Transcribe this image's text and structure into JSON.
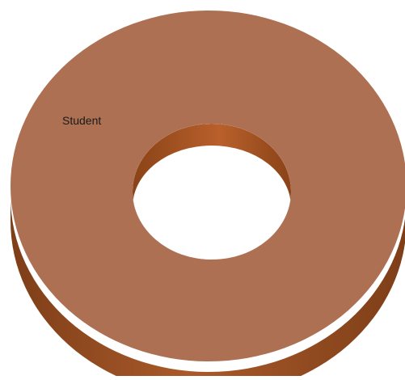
{
  "chart_data": {
    "type": "pie",
    "style": "3d-doughnut",
    "title": "",
    "categories": [
      "Student"
    ],
    "values": [
      100
    ],
    "labels": [
      "Student"
    ],
    "colors": {
      "top": "#ad7052",
      "side": "#a95a2a",
      "side_dark": "#7e3e18",
      "inner_wall": "#b9602c",
      "inner_wall_dark": "#8a4317",
      "hole": "#ffffff"
    },
    "legend": "none",
    "grid": false
  }
}
